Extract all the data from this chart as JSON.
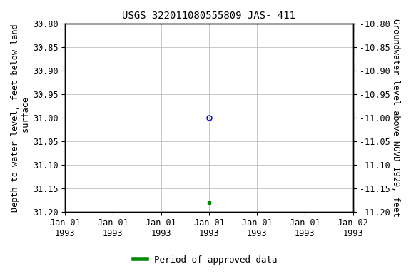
{
  "title": "USGS 322011080555809 JAS- 411",
  "ylabel_left": "Depth to water level, feet below land\n surface",
  "ylabel_right": "Groundwater level above NGVD 1929, feet",
  "ylim_left": [
    30.8,
    31.2
  ],
  "ylim_right": [
    -10.8,
    -11.2
  ],
  "yticks_left": [
    30.8,
    30.85,
    30.9,
    30.95,
    31.0,
    31.05,
    31.1,
    31.15,
    31.2
  ],
  "yticks_right": [
    -10.8,
    -10.85,
    -10.9,
    -10.95,
    -11.0,
    -11.05,
    -11.1,
    -11.15,
    -11.2
  ],
  "xtick_labels": [
    "Jan 01\n1993",
    "Jan 01\n1993",
    "Jan 01\n1993",
    "Jan 01\n1993",
    "Jan 01\n1993",
    "Jan 01\n1993",
    "Jan 02\n1993"
  ],
  "data_blue_x": [
    0.5
  ],
  "data_blue_y": [
    31.0
  ],
  "data_green_x": [
    0.5
  ],
  "data_green_y": [
    31.18
  ],
  "blue_color": "#0000CC",
  "green_color": "#008800",
  "legend_label": "Period of approved data",
  "bg_color": "#ffffff",
  "grid_color": "#c8c8c8",
  "x_min": 0.0,
  "x_max": 1.0,
  "title_fontsize": 10,
  "tick_fontsize": 8.5,
  "label_fontsize": 8.5
}
